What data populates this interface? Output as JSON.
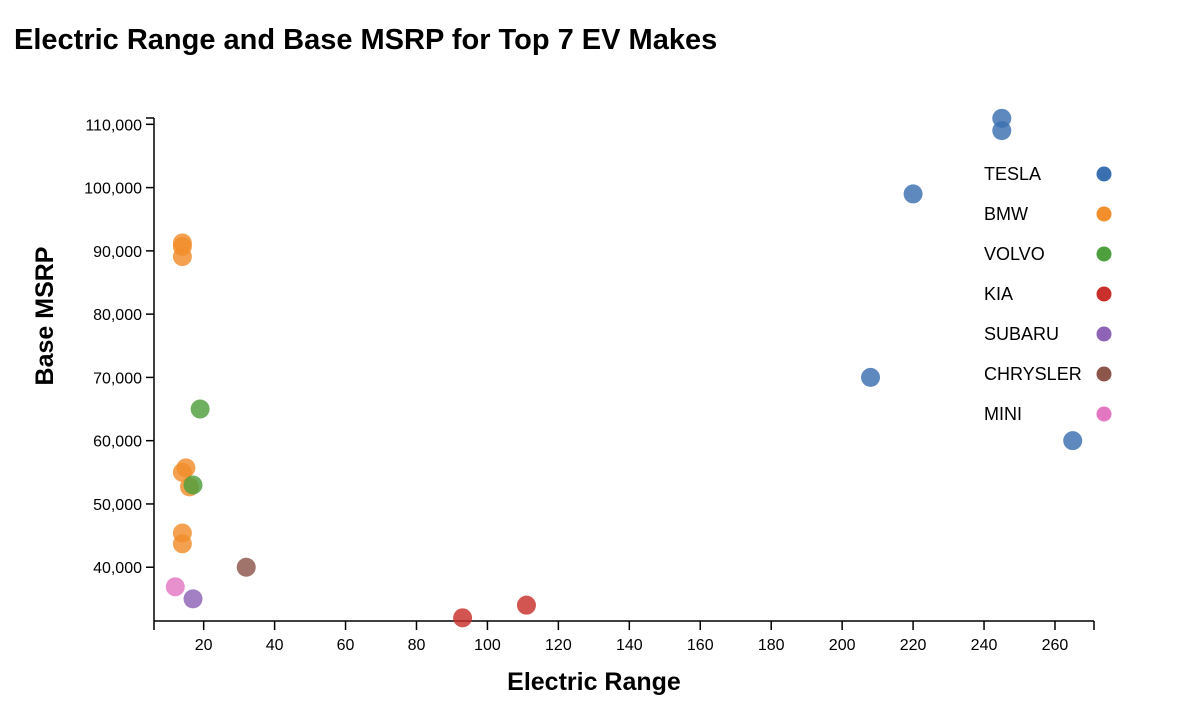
{
  "chart_data": {
    "type": "scatter",
    "title": "Electric Range and Base MSRP for Top 7 EV Makes",
    "xlabel": "Electric Range",
    "ylabel": "Base MSRP",
    "xlim": [
      6,
      271
    ],
    "ylim": [
      31500,
      111000
    ],
    "x_ticks": [
      20,
      40,
      60,
      80,
      100,
      120,
      140,
      160,
      180,
      200,
      220,
      240,
      260
    ],
    "y_ticks": [
      40000,
      50000,
      60000,
      70000,
      80000,
      90000,
      100000,
      110000
    ],
    "x_tick_labels": [
      "20",
      "40",
      "60",
      "80",
      "100",
      "120",
      "140",
      "160",
      "180",
      "200",
      "220",
      "240",
      "260"
    ],
    "y_tick_labels": [
      "40,000",
      "50,000",
      "60,000",
      "70,000",
      "80,000",
      "90,000",
      "100,000",
      "110,000"
    ],
    "grid": false,
    "legend_position": "top-right",
    "series": [
      {
        "name": "TESLA",
        "color": "#3a6fb0",
        "points": [
          [
            245,
            110950
          ],
          [
            245,
            109000
          ],
          [
            220,
            99000
          ],
          [
            208,
            70000
          ],
          [
            265,
            60000
          ]
        ]
      },
      {
        "name": "BMW",
        "color": "#f28e2b",
        "points": [
          [
            14,
            91250
          ],
          [
            14,
            90700
          ],
          [
            14,
            89100
          ],
          [
            15,
            55700
          ],
          [
            14,
            55000
          ],
          [
            16,
            52700
          ],
          [
            14,
            45400
          ],
          [
            14,
            43700
          ]
        ]
      },
      {
        "name": "VOLVO",
        "color": "#4e9f3d",
        "points": [
          [
            19,
            65000
          ],
          [
            17,
            53000
          ]
        ]
      },
      {
        "name": "KIA",
        "color": "#c9302c",
        "points": [
          [
            93,
            32000
          ],
          [
            111,
            34000
          ]
        ]
      },
      {
        "name": "SUBARU",
        "color": "#8e63b5",
        "points": [
          [
            17,
            35000
          ]
        ]
      },
      {
        "name": "CHRYSLER",
        "color": "#8c564b",
        "points": [
          [
            32,
            40000
          ]
        ]
      },
      {
        "name": "MINI",
        "color": "#e377c2",
        "points": [
          [
            12,
            36900
          ]
        ]
      }
    ]
  }
}
